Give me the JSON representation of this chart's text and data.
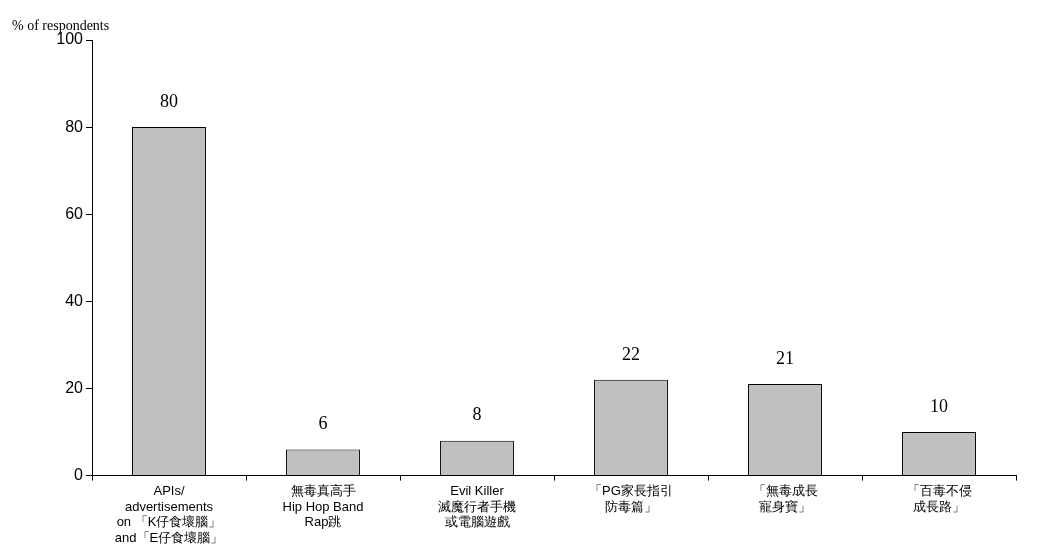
{
  "chart_data": {
    "type": "bar",
    "ylabel": "% of respondents",
    "categories": [
      "APIs/\nadvertisements\non 「K仔食壞腦」\nand「E仔食壞腦」",
      "無毒真高手\nHip Hop Band\nRap跳",
      "Evil Killer\n滅魔行者手機或電腦遊戲",
      "「PG家長指引防毒篇」",
      "「無毒成長寵身寶」",
      "「百毒不侵成長路」"
    ],
    "values": [
      80,
      6,
      8,
      22,
      21,
      10
    ],
    "color": "#c0c0c0",
    "ylim": [
      0,
      100
    ],
    "yticks": [
      0,
      20,
      40,
      60,
      80,
      100
    ],
    "grid": false,
    "legend": false,
    "data_labels": true
  }
}
